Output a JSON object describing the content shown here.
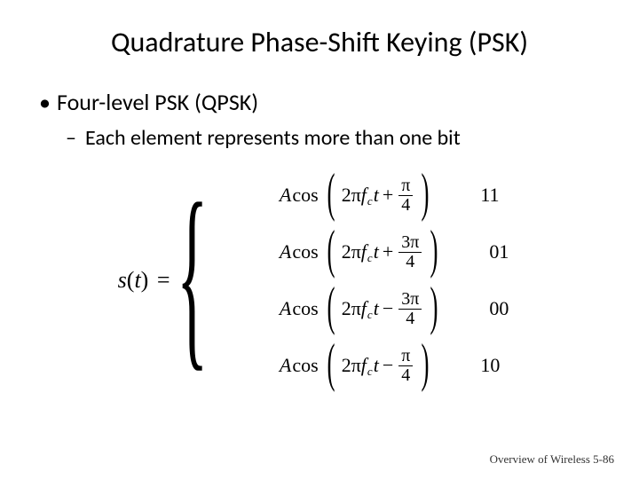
{
  "title": "Quadrature Phase-Shift Keying (PSK)",
  "bullet1": "Four-level PSK (QPSK)",
  "bullet2": "Each element represents more than one bit",
  "eq": {
    "lhs_s": "s",
    "lhs_t": "t",
    "amp": "A",
    "cos": "cos",
    "twopi": "2π",
    "f": "f",
    "sub_c": "c",
    "t": "t",
    "pi": "π",
    "three_pi": "3π",
    "four": "4",
    "plus": "+",
    "minus": "−",
    "equals": "="
  },
  "cases": [
    {
      "sign": "+",
      "num": "π",
      "bits": "11"
    },
    {
      "sign": "+",
      "num": "3π",
      "bits": "01"
    },
    {
      "sign": "−",
      "num": "3π",
      "bits": "00"
    },
    {
      "sign": "−",
      "num": "π",
      "bits": "10"
    }
  ],
  "footer": "Overview of Wireless 5-86"
}
